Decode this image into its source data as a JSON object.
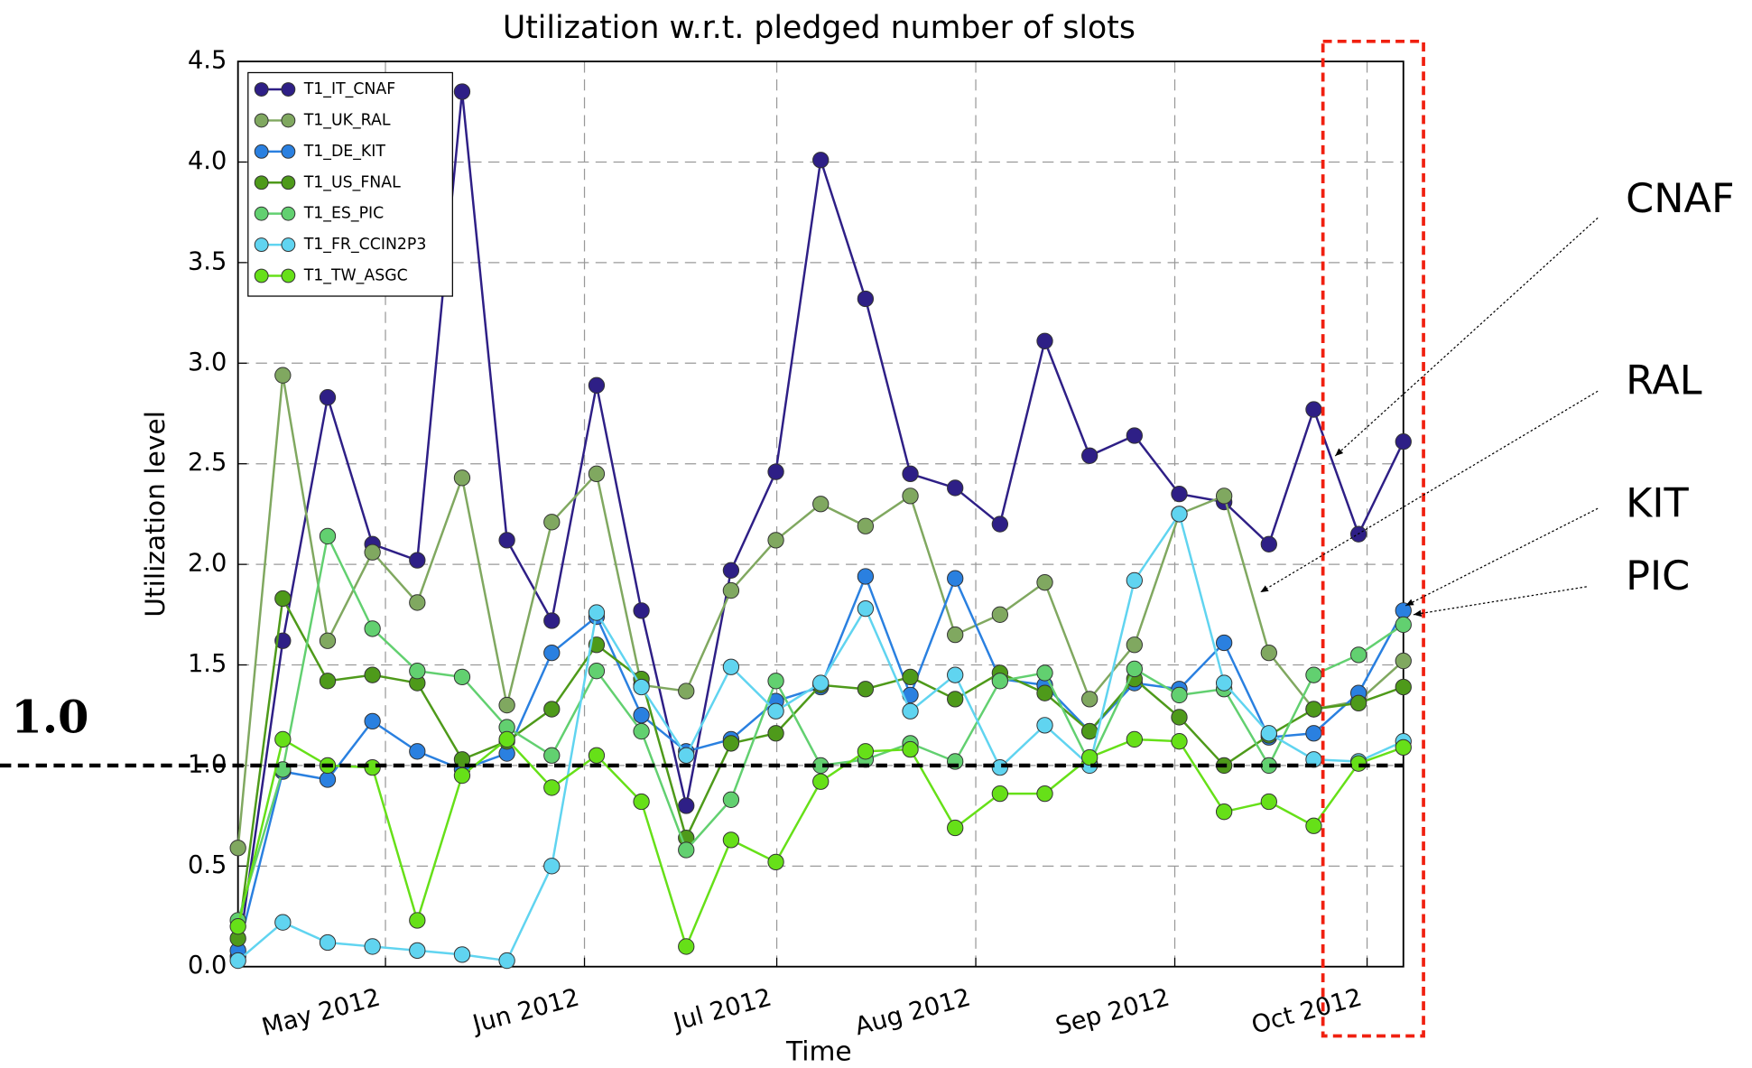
{
  "chart_data": {
    "type": "line",
    "title": "Utilization w.r.t. pledged number of slots",
    "x_label": "Time",
    "y_label": "Utilization level",
    "x": [
      0,
      1,
      2,
      3,
      4,
      5,
      6,
      7,
      8,
      9,
      10,
      11,
      12,
      13,
      14,
      15,
      16,
      17,
      18,
      19,
      20,
      21,
      22,
      23,
      24,
      25,
      26
    ],
    "xlim": [
      0,
      26
    ],
    "xticks": [
      {
        "value": 3.29,
        "label": "May 2012"
      },
      {
        "value": 7.73,
        "label": "Jun 2012"
      },
      {
        "value": 12.02,
        "label": "Jul 2012"
      },
      {
        "value": 16.46,
        "label": "Aug 2012"
      },
      {
        "value": 20.9,
        "label": "Sep 2012"
      },
      {
        "value": 25.19,
        "label": "Oct 2012"
      }
    ],
    "ylim": [
      0,
      4.5
    ],
    "yticks": [
      {
        "value": 0,
        "label": "0.0"
      },
      {
        "value": 0.5,
        "label": "0.5"
      },
      {
        "value": 1,
        "label": "1.0"
      },
      {
        "value": 1.5,
        "label": "1.5"
      },
      {
        "value": 2,
        "label": "2.0"
      },
      {
        "value": 2.5,
        "label": "2.5"
      },
      {
        "value": 3,
        "label": "3.0"
      },
      {
        "value": 3.5,
        "label": "3.5"
      },
      {
        "value": 4,
        "label": "4.0"
      },
      {
        "value": 4.5,
        "label": "4.5"
      }
    ],
    "grid": true,
    "legend": "upper left",
    "series": [
      {
        "name": "T1_IT_CNAF",
        "color": "#2e1f86",
        "values": [
          0.05,
          1.62,
          2.83,
          2.1,
          2.02,
          4.35,
          2.12,
          1.72,
          2.89,
          1.77,
          0.8,
          1.97,
          2.46,
          4.01,
          3.32,
          2.45,
          2.38,
          2.2,
          3.11,
          2.54,
          2.64,
          2.35,
          2.31,
          2.1,
          2.77,
          2.15,
          2.61
        ]
      },
      {
        "name": "T1_UK_RAL",
        "color": "#80a860",
        "values": [
          0.59,
          2.94,
          1.62,
          2.06,
          1.81,
          2.43,
          1.3,
          2.21,
          2.45,
          1.4,
          1.37,
          1.87,
          2.12,
          2.3,
          2.19,
          2.34,
          1.65,
          1.75,
          1.91,
          1.33,
          1.6,
          2.25,
          2.34,
          1.56,
          1.28,
          1.32,
          1.52
        ]
      },
      {
        "name": "T1_DE_KIT",
        "color": "#2a80e0",
        "values": [
          0.08,
          0.97,
          0.93,
          1.22,
          1.07,
          0.98,
          1.06,
          1.56,
          1.74,
          1.25,
          1.07,
          1.13,
          1.32,
          1.39,
          1.94,
          1.35,
          1.93,
          1.43,
          1.4,
          1.17,
          1.41,
          1.38,
          1.61,
          1.14,
          1.16,
          1.36,
          1.77
        ]
      },
      {
        "name": "T1_US_FNAL",
        "color": "#4e9a1a",
        "values": [
          0.14,
          1.83,
          1.42,
          1.45,
          1.41,
          1.03,
          1.12,
          1.28,
          1.6,
          1.43,
          0.64,
          1.11,
          1.16,
          1.4,
          1.38,
          1.44,
          1.33,
          1.46,
          1.36,
          1.17,
          1.43,
          1.24,
          1.0,
          1.15,
          1.28,
          1.31,
          1.39
        ]
      },
      {
        "name": "T1_ES_PIC",
        "color": "#62d070",
        "values": [
          0.23,
          0.98,
          2.14,
          1.68,
          1.47,
          1.44,
          1.19,
          1.05,
          1.47,
          1.17,
          0.58,
          0.83,
          1.42,
          1.0,
          1.03,
          1.11,
          1.02,
          1.42,
          1.46,
          1.01,
          1.48,
          1.35,
          1.38,
          1.0,
          1.45,
          1.55,
          1.7
        ]
      },
      {
        "name": "T1_FR_CCIN2P3",
        "color": "#60d4f0",
        "values": [
          0.03,
          0.22,
          0.12,
          0.1,
          0.08,
          0.06,
          0.03,
          0.5,
          1.76,
          1.39,
          1.05,
          1.49,
          1.27,
          1.41,
          1.78,
          1.27,
          1.45,
          0.99,
          1.2,
          1.0,
          1.92,
          2.25,
          1.41,
          1.16,
          1.03,
          1.02,
          1.12
        ]
      },
      {
        "name": "T1_TW_ASGC",
        "color": "#66e018",
        "values": [
          0.2,
          1.13,
          1.0,
          0.99,
          0.23,
          0.95,
          1.13,
          0.89,
          1.05,
          0.82,
          0.1,
          0.63,
          0.52,
          0.92,
          1.07,
          1.08,
          0.69,
          0.86,
          0.86,
          1.04,
          1.13,
          1.12,
          0.77,
          0.82,
          0.7,
          1.01,
          1.09
        ]
      }
    ],
    "reference_line": {
      "value": 1,
      "label": "1.0"
    },
    "annotations": [
      {
        "text": "CNAF",
        "color": "#4b2a9a"
      },
      {
        "text": "RAL",
        "color": "#8a8a10"
      },
      {
        "text": "KIT",
        "color": "#1f4ff0"
      },
      {
        "text": "PIC",
        "color": "#20e890"
      }
    ]
  }
}
